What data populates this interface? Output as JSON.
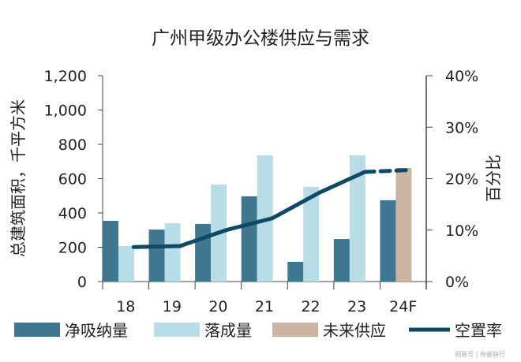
{
  "chart_data": {
    "type": "bar",
    "title": "广州甲级办公楼供应与需求",
    "ylabel": "总建筑面积，千平方米",
    "y2label": "百分比",
    "categories": [
      "18",
      "19",
      "20",
      "21",
      "22",
      "23",
      "24F"
    ],
    "ylim": [
      0,
      1200
    ],
    "yticks": [
      "0",
      "200",
      "400",
      "600",
      "800",
      "1,000",
      "1,200"
    ],
    "y2lim": [
      0,
      40
    ],
    "y2ticks": [
      "0%",
      "10%",
      "20%",
      "30%",
      "40%"
    ],
    "grid": false,
    "legend_position": "bottom",
    "series": [
      {
        "name": "净吸纳量",
        "kind": "bar",
        "color": "#3f7690",
        "values": [
          354,
          303,
          336,
          497,
          115,
          248,
          474
        ]
      },
      {
        "name": "落成量",
        "kind": "bar",
        "color": "#b9dde6",
        "values": [
          207,
          340,
          566,
          736,
          552,
          736,
          null
        ]
      },
      {
        "name": "未来供应",
        "kind": "bar",
        "color": "#cbb4a2",
        "values": [
          null,
          null,
          null,
          null,
          null,
          null,
          662
        ]
      },
      {
        "name": "空置率",
        "kind": "line",
        "axis": "right",
        "unit": "%",
        "color": "#0e4a63",
        "values": [
          6.7,
          6.9,
          10.0,
          12.3,
          17.2,
          21.3,
          21.7
        ],
        "dashed_from": "23"
      }
    ]
  },
  "watermark": "网易号 | 仲量联行"
}
